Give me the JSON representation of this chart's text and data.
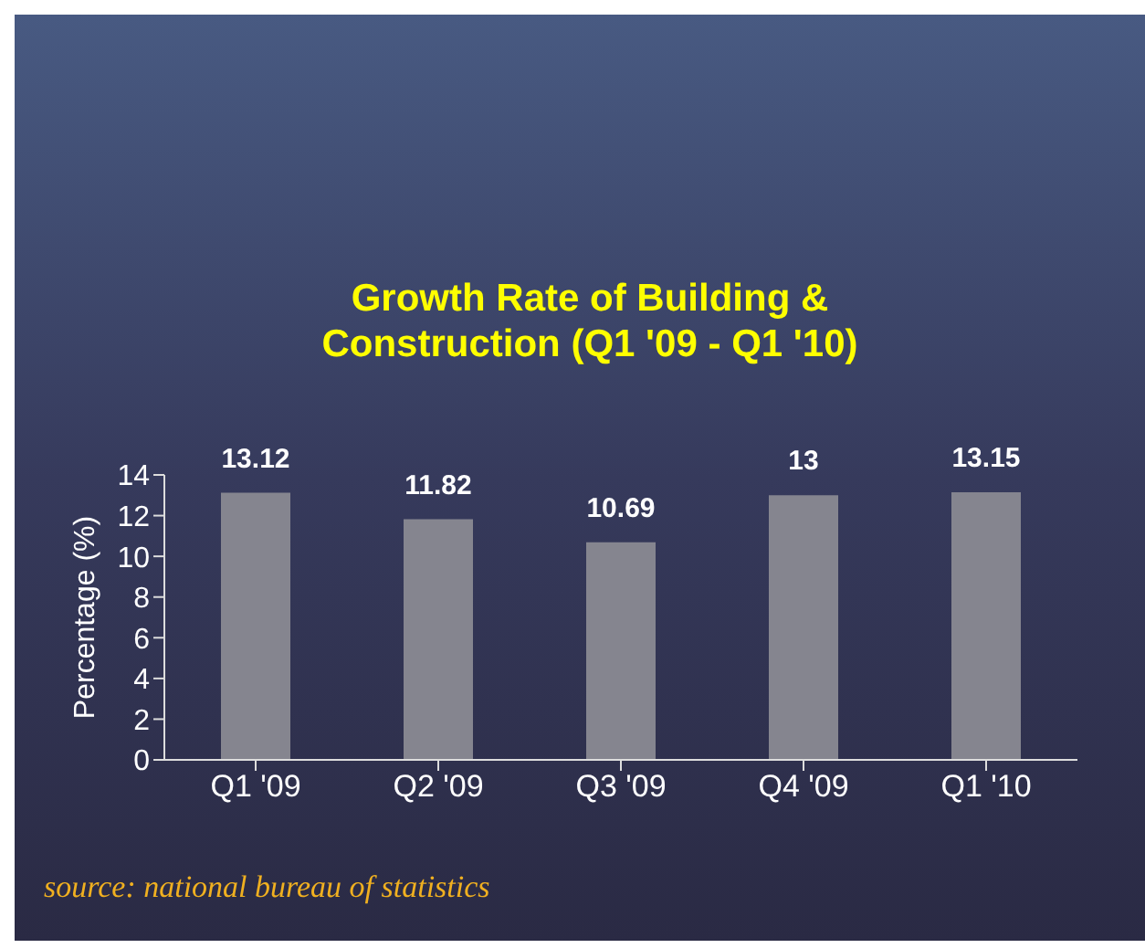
{
  "chart_data": {
    "type": "bar",
    "title": "Growth Rate of Building & Construction (Q1 '09 - Q1 '10)",
    "ylabel": "Percentage (%)",
    "categories": [
      "Q1 '09",
      "Q2 '09",
      "Q3 '09",
      "Q4 '09",
      "Q1 '10"
    ],
    "values": [
      13.12,
      11.82,
      10.69,
      13,
      13.15
    ],
    "color": "#85858f",
    "ylim": [
      0,
      14
    ],
    "yticks": [
      0,
      2,
      4,
      6,
      8,
      10,
      12,
      14
    ],
    "data_labels": true,
    "grid": false,
    "annotations": [
      "source: national bureau of statistics"
    ]
  }
}
